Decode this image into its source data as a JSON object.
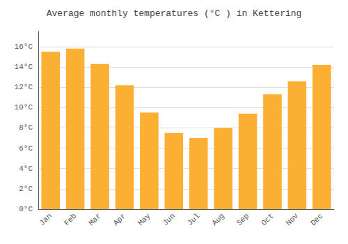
{
  "chart_data": {
    "type": "bar",
    "title": "Average monthly temperatures (°C ) in Kettering",
    "categories": [
      "Jan",
      "Feb",
      "Mar",
      "Apr",
      "May",
      "Jun",
      "Jul",
      "Aug",
      "Sep",
      "Oct",
      "Nov",
      "Dec"
    ],
    "values": [
      15.5,
      15.8,
      14.3,
      12.2,
      9.5,
      7.5,
      7.0,
      8.0,
      9.4,
      11.3,
      12.6,
      14.2
    ],
    "color": "#FBB034",
    "ylim": [
      0,
      17.5
    ],
    "yticks": [
      {
        "value": 0,
        "label": "0°C"
      },
      {
        "value": 2,
        "label": "2°C"
      },
      {
        "value": 4,
        "label": "4°C"
      },
      {
        "value": 6,
        "label": "6°C"
      },
      {
        "value": 8,
        "label": "8°C"
      },
      {
        "value": 10,
        "label": "10°C"
      },
      {
        "value": 12,
        "label": "12°C"
      },
      {
        "value": 14,
        "label": "14°C"
      },
      {
        "value": 16,
        "label": "16°C"
      }
    ],
    "grid": true
  }
}
